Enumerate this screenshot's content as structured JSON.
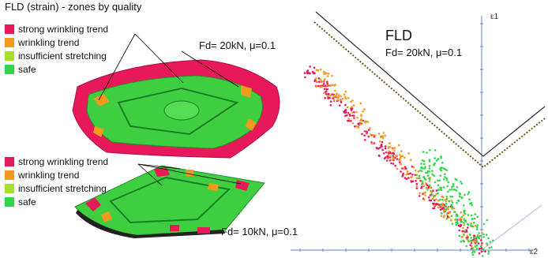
{
  "header": {
    "title": "FLD (strain) - zones by quality"
  },
  "legend_top": [
    {
      "label": "strong wrinkling trend",
      "color": "#e8195a"
    },
    {
      "label": "wrinkling trend",
      "color": "#f39a1e"
    },
    {
      "label": "insufficient stretching",
      "color": "#a6e02c"
    },
    {
      "label": "safe",
      "color": "#33d64a"
    }
  ],
  "legend_bottom": [
    {
      "label": "strong wrinkling trend",
      "color": "#e8195a"
    },
    {
      "label": "wrinkling trend",
      "color": "#f39a1e"
    },
    {
      "label": "insufficient stretching",
      "color": "#a6e02c"
    },
    {
      "label": "safe",
      "color": "#33d64a"
    }
  ],
  "labels": {
    "top_condition": "Fd= 20kN, μ=0.1",
    "bottom_condition": "Fd= 10kN, μ=0.1"
  },
  "fld_chart": {
    "title": "FLD",
    "condition": "Fd= 20kN, μ=0.1",
    "y_axis_label": "ε1",
    "x_axis_label": "ε2"
  },
  "chart_data": {
    "type": "scatter",
    "title": "FLD",
    "subtitle": "Fd= 20kN, μ=0.1",
    "xlabel": "ε2",
    "ylabel": "ε1",
    "series": [
      {
        "name": "strong wrinkling trend",
        "color": "#e8195a"
      },
      {
        "name": "wrinkling trend",
        "color": "#f39a1e"
      },
      {
        "name": "safe",
        "color": "#33d64a"
      }
    ]
  }
}
